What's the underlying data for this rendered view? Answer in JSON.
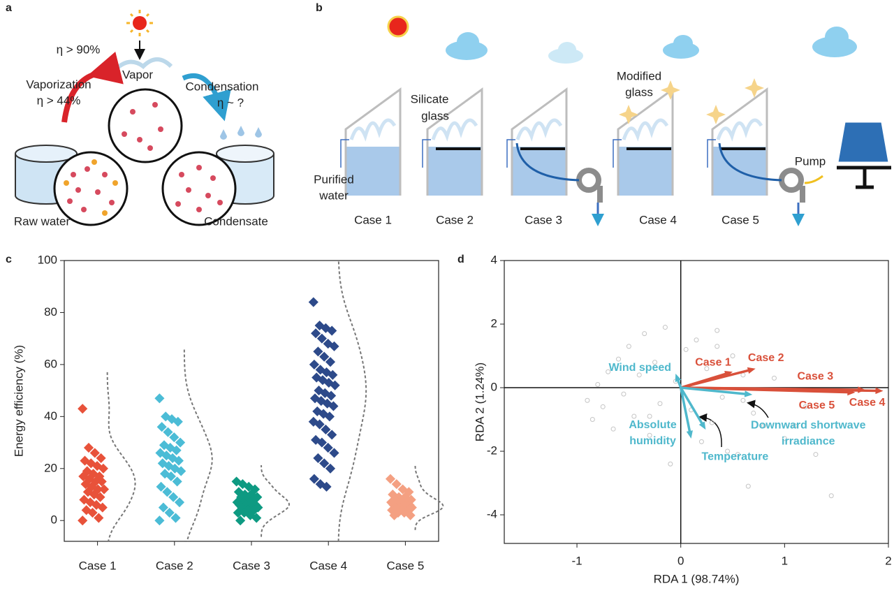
{
  "figure": {
    "a": {
      "label": "a",
      "eta_sun": "η > 90%",
      "vapor": "Vapor",
      "vaporization": [
        "Vaporization",
        "η > 44%"
      ],
      "condensation": [
        "Condensation",
        "η ~ ?"
      ],
      "raw_water": "Raw water",
      "condensate": "Condensate"
    },
    "b": {
      "label": "b",
      "silicate_glass": [
        "Silicate",
        "glass"
      ],
      "modified_glass": [
        "Modified",
        "glass"
      ],
      "purified_water": [
        "Purified",
        "water"
      ],
      "pump": "Pump",
      "cases": [
        "Case 1",
        "Case 2",
        "Case 3",
        "Case 4",
        "Case 5"
      ]
    }
  },
  "chart_data": [
    {
      "panel_label": "c",
      "type": "strip",
      "ylabel": "Energy efficiency (%)",
      "ylim": [
        -8,
        100
      ],
      "yticks": [
        0,
        20,
        40,
        60,
        80,
        100
      ],
      "categories": [
        "Case 1",
        "Case 2",
        "Case 3",
        "Case 4",
        "Case 5"
      ],
      "series": [
        {
          "color": "#e8523a",
          "values": [
            43,
            28,
            26,
            24,
            23,
            22,
            21,
            20,
            19,
            18,
            17,
            17,
            16,
            15,
            15,
            14,
            13,
            12,
            12,
            11,
            10,
            9,
            8,
            7,
            6,
            5,
            4,
            3,
            1,
            0
          ]
        },
        {
          "color": "#4bbcd6",
          "values": [
            47,
            40,
            39,
            38,
            36,
            34,
            32,
            30,
            29,
            28,
            27,
            26,
            25,
            24,
            23,
            22,
            21,
            20,
            19,
            18,
            17,
            15,
            13,
            11,
            9,
            7,
            5,
            3,
            1,
            0
          ]
        },
        {
          "color": "#0e9a82",
          "values": [
            15,
            14,
            13,
            12,
            11,
            10,
            10,
            9,
            9,
            8,
            8,
            7,
            7,
            7,
            6,
            6,
            6,
            5,
            5,
            5,
            4,
            4,
            3,
            3,
            2,
            1,
            0
          ]
        },
        {
          "color": "#2d4a8a",
          "values": [
            84,
            75,
            74,
            73,
            72,
            70,
            68,
            67,
            65,
            63,
            61,
            60,
            58,
            57,
            56,
            55,
            54,
            53,
            52,
            50,
            49,
            48,
            47,
            46,
            45,
            44,
            42,
            41,
            40,
            38,
            37,
            35,
            33,
            31,
            30,
            28,
            26,
            24,
            22,
            20,
            16,
            14,
            13
          ]
        },
        {
          "color": "#f4a082",
          "values": [
            16,
            14,
            12,
            11,
            10,
            9,
            9,
            8,
            8,
            7,
            7,
            7,
            6,
            6,
            6,
            6,
            5,
            5,
            5,
            5,
            4,
            4,
            4,
            3,
            3,
            2,
            2
          ]
        }
      ]
    },
    {
      "panel_label": "d",
      "type": "biplot",
      "xlabel": "RDA 1 (98.74%)",
      "ylabel": "RDA 2 (1.24%)",
      "xlim": [
        -1.7,
        2
      ],
      "ylim": [
        -4.9,
        4
      ],
      "xticks": [
        -1,
        0,
        1,
        2
      ],
      "yticks": [
        -4,
        -2,
        0,
        2,
        4
      ],
      "points": {
        "color": "#c4c4c4",
        "x": [
          -0.9,
          -0.85,
          -0.8,
          -0.75,
          -0.7,
          -0.65,
          -0.6,
          -0.55,
          -0.5,
          -0.45,
          -0.4,
          -0.35,
          -0.3,
          -0.25,
          -0.2,
          -0.15,
          -0.1,
          -0.05,
          0.05,
          0.1,
          0.15,
          0.2,
          0.25,
          0.3,
          0.35,
          0.4,
          0.45,
          0.5,
          0.55,
          0.6,
          0.65,
          0.7,
          0.8,
          0.9,
          1.0,
          1.1,
          1.2,
          1.3,
          1.45,
          -0.3,
          0.35,
          0.6
        ],
        "y": [
          -0.4,
          -1.0,
          0.1,
          -0.6,
          0.5,
          -1.3,
          0.9,
          -0.2,
          1.3,
          -0.9,
          0.4,
          1.7,
          -1.5,
          0.8,
          -0.5,
          1.9,
          -2.4,
          0.2,
          1.2,
          -0.7,
          1.5,
          -1.7,
          0.6,
          -1.1,
          1.8,
          -0.3,
          -2.0,
          1.0,
          -2.1,
          0.4,
          -3.1,
          -0.8,
          -1.2,
          0.3,
          -1.6,
          -1.2,
          -0.6,
          -2.1,
          -3.4,
          -0.9,
          1.3,
          -0.4
        ]
      },
      "arrows": [
        {
          "name": [
            "Case 1"
          ],
          "color": "#d9503a",
          "x": 0.5,
          "y": 0.5
        },
        {
          "name": [
            "Case 2"
          ],
          "color": "#d9503a",
          "x": 0.72,
          "y": 0.6
        },
        {
          "name": [
            "Case 3"
          ],
          "color": "#d9503a",
          "x": 1.78,
          "y": -0.07
        },
        {
          "name": [
            "Case 4"
          ],
          "color": "#d9503a",
          "x": 1.95,
          "y": -0.1
        },
        {
          "name": [
            "Case 5"
          ],
          "color": "#d9503a",
          "x": 1.68,
          "y": -0.15
        },
        {
          "name": [
            "Wind speed"
          ],
          "color": "#4fb8cc",
          "x": -0.05,
          "y": 0.44
        },
        {
          "name": [
            "Absolute",
            "humidity"
          ],
          "color": "#4fb8cc",
          "x": 0.1,
          "y": -1.6
        },
        {
          "name": [
            "Temperature"
          ],
          "color": "#4fb8cc",
          "x": 0.24,
          "y": -1.32
        },
        {
          "name": [
            "Downward shortwave",
            "irradiance"
          ],
          "color": "#4fb8cc",
          "x": 0.69,
          "y": -0.22
        }
      ]
    }
  ]
}
